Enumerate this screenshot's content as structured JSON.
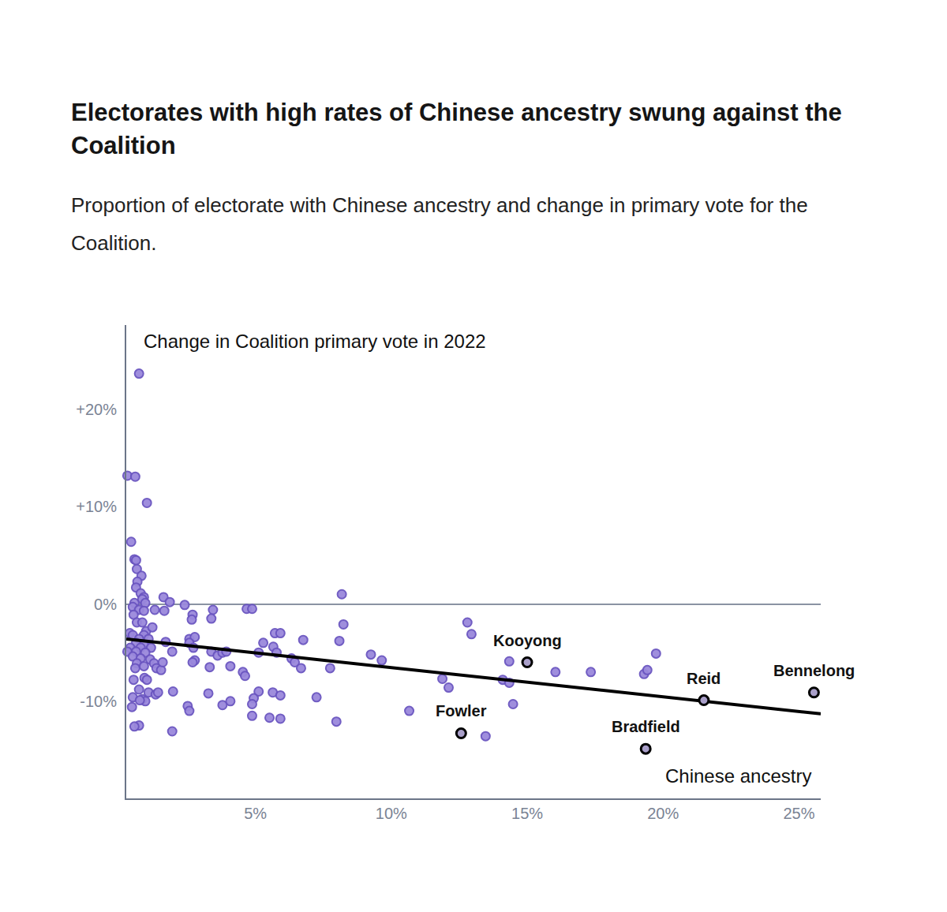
{
  "chart_data": {
    "type": "scatter",
    "title": "Electorates with high rates of Chinese ancestry swung against the Coalition",
    "subtitle": "Proportion of electorate with Chinese ancestry and change in primary vote for the Coalition.",
    "xlabel": "Chinese ancestry",
    "ylabel": "Change in Coalition primary vote in 2022",
    "x": [
      0.72,
      0.29,
      0.58,
      1.01,
      0.43,
      0.55,
      0.61,
      0.64,
      0.81,
      0.66,
      0.61,
      0.78,
      0.9,
      0.84,
      0.55,
      0.95,
      0.49,
      0.72,
      0.9,
      1.3,
      1.62,
      1.85,
      1.65,
      2.4,
      2.69,
      2.66,
      3.44,
      3.38,
      4.68,
      4.88,
      8.18,
      8.24,
      0.52,
      0.64,
      0.84,
      0.98,
      1.21,
      0.9,
      0.38,
      0.49,
      0.72,
      1.07,
      0.61,
      0.9,
      0.4,
      0.78,
      1.16,
      0.29,
      0.61,
      0.95,
      0.49,
      0.78,
      1.13,
      0.64,
      0.9,
      1.27,
      0.58,
      1.36,
      1.53,
      0.52,
      0.92,
      1.01,
      0.72,
      1.07,
      1.33,
      1.42,
      0.49,
      0.84,
      0.95,
      0.75,
      0.46,
      0.72,
      0.55,
      1.7,
      1.59,
      1.94,
      1.97,
      1.94,
      2.57,
      2.77,
      2.57,
      2.72,
      2.77,
      2.69,
      3.32,
      3.38,
      3.61,
      3.79,
      3.93,
      3.27,
      2.51,
      2.57,
      3.79,
      4.08,
      4.08,
      4.54,
      4.62,
      5.29,
      5.72,
      5.92,
      5.66,
      5.78,
      5.12,
      6.33,
      6.45,
      6.68,
      6.76,
      5.12,
      4.94,
      4.88,
      5.64,
      5.92,
      4.88,
      5.52,
      5.92,
      7.25,
      7.75,
      8.09,
      7.98,
      9.25,
      9.65,
      10.66,
      11.88,
      12.11,
      12.8,
      12.95,
      14.34,
      14.1,
      14.34,
      14.48,
      13.47,
      16.04,
      17.34,
      19.3,
      19.42,
      19.74
    ],
    "y": [
      23.7,
      13.2,
      13.1,
      10.4,
      6.4,
      4.6,
      4.5,
      3.6,
      2.9,
      2.3,
      1.7,
      1.1,
      0.7,
      0.5,
      0.1,
      0.1,
      -0.3,
      -0.6,
      -0.7,
      -0.6,
      0.7,
      0.2,
      -0.7,
      -0.1,
      -1.1,
      -1.6,
      -0.6,
      -1.5,
      -0.5,
      -0.5,
      1.0,
      -2.1,
      -1.1,
      -1.9,
      -1.9,
      -2.8,
      -2.4,
      -3.2,
      -3.0,
      -3.2,
      -3.6,
      -3.6,
      -4.0,
      -4.2,
      -4.5,
      -4.5,
      -4.5,
      -4.9,
      -4.9,
      -5.0,
      -5.4,
      -5.6,
      -5.7,
      -6.1,
      -6.4,
      -6.1,
      -6.6,
      -6.6,
      -6.8,
      -7.8,
      -7.6,
      -7.8,
      -8.8,
      -9.1,
      -9.3,
      -9.1,
      -9.6,
      -9.8,
      -10.0,
      -9.9,
      -10.6,
      -12.5,
      -12.6,
      -3.9,
      -6.0,
      -4.9,
      -9.0,
      -13.1,
      -3.6,
      -3.4,
      -4.0,
      -4.5,
      -5.8,
      -6.0,
      -6.5,
      -4.9,
      -5.3,
      -5.0,
      -4.9,
      -9.2,
      -10.5,
      -11.0,
      -10.4,
      -10.0,
      -6.4,
      -7.0,
      -7.4,
      -4.0,
      -3.0,
      -3.0,
      -4.4,
      -5.0,
      -5.0,
      -5.6,
      -6.0,
      -6.6,
      -3.7,
      -9.0,
      -9.7,
      -10.3,
      -9.1,
      -9.4,
      -11.5,
      -11.7,
      -11.8,
      -9.6,
      -6.6,
      -3.8,
      -12.1,
      -5.2,
      -5.8,
      -11.0,
      -7.7,
      -8.6,
      -1.9,
      -3.1,
      -5.9,
      -7.8,
      -8.1,
      -10.3,
      -13.6,
      -7.0,
      -7.0,
      -7.2,
      -6.8,
      -5.1
    ],
    "color": "#9a88dc",
    "marker": "circle",
    "highlighted": [
      {
        "label": "Kooyong",
        "x": 15.0,
        "y": -6.0
      },
      {
        "label": "Fowler",
        "x": 12.57,
        "y": -13.3
      },
      {
        "label": "Bradfield",
        "x": 19.36,
        "y": -14.9
      },
      {
        "label": "Reid",
        "x": 21.5,
        "y": -9.9
      },
      {
        "label": "Bennelong",
        "x": 25.55,
        "y": -9.1
      }
    ],
    "trend": {
      "x": [
        0.25,
        25.8
      ],
      "y": [
        -3.6,
        -11.3
      ]
    },
    "xlim": [
      0.25,
      25.8
    ],
    "xticks": [
      {
        "value": 5,
        "label": "5%"
      },
      {
        "value": 10,
        "label": "10%"
      },
      {
        "value": 15,
        "label": "15%"
      },
      {
        "value": 20,
        "label": "20%"
      },
      {
        "value": 25,
        "label": "25%"
      }
    ],
    "ylim": [
      -20,
      28.7
    ],
    "yticks": [
      {
        "value": -10,
        "label": "-10%"
      },
      {
        "value": 0,
        "label": "0%"
      },
      {
        "value": 10,
        "label": "+10%"
      },
      {
        "value": 20,
        "label": "+20%"
      }
    ],
    "grid": false
  }
}
